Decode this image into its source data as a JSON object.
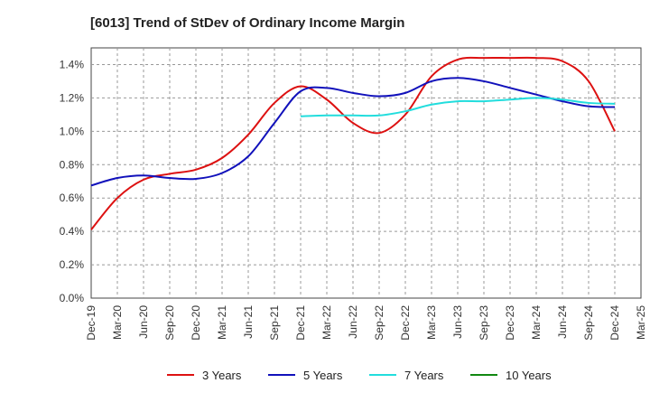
{
  "chart_data": {
    "type": "line",
    "title": "[6013]  Trend of StDev of Ordinary Income Margin",
    "xlabel": "",
    "ylabel": "",
    "x_start": "Dec-19",
    "x_end": "Mar-25",
    "x_ticks": [
      "Dec-19",
      "Mar-20",
      "Jun-20",
      "Sep-20",
      "Dec-20",
      "Mar-21",
      "Jun-21",
      "Sep-21",
      "Dec-21",
      "Mar-22",
      "Jun-22",
      "Sep-22",
      "Dec-22",
      "Mar-23",
      "Jun-23",
      "Sep-23",
      "Dec-23",
      "Mar-24",
      "Jun-24",
      "Sep-24",
      "Dec-24",
      "Mar-25"
    ],
    "y_ticks": [
      "0.0%",
      "0.2%",
      "0.4%",
      "0.6%",
      "0.8%",
      "1.0%",
      "1.2%",
      "1.4%"
    ],
    "ylim": [
      0,
      1.5
    ],
    "grid": true,
    "legend_position": "bottom",
    "series": [
      {
        "name": "3 Years",
        "color": "#dd1111",
        "points": [
          [
            "Dec-19",
            0.41
          ],
          [
            "Mar-20",
            0.6
          ],
          [
            "Jun-20",
            0.71
          ],
          [
            "Sep-20",
            0.745
          ],
          [
            "Dec-20",
            0.77
          ],
          [
            "Mar-21",
            0.84
          ],
          [
            "Jun-21",
            0.98
          ],
          [
            "Sep-21",
            1.17
          ],
          [
            "Dec-21",
            1.27
          ],
          [
            "Mar-22",
            1.19
          ],
          [
            "Jun-22",
            1.05
          ],
          [
            "Sep-22",
            0.99
          ],
          [
            "Dec-22",
            1.1
          ],
          [
            "Mar-23",
            1.33
          ],
          [
            "Jun-23",
            1.43
          ],
          [
            "Sep-23",
            1.44
          ],
          [
            "Dec-23",
            1.44
          ],
          [
            "Mar-24",
            1.44
          ],
          [
            "Jun-24",
            1.42
          ],
          [
            "Sep-24",
            1.3
          ],
          [
            "Dec-24",
            1.0
          ]
        ]
      },
      {
        "name": "5 Years",
        "color": "#1111bb",
        "points": [
          [
            "Dec-19",
            0.675
          ],
          [
            "Mar-20",
            0.72
          ],
          [
            "Jun-20",
            0.735
          ],
          [
            "Sep-20",
            0.72
          ],
          [
            "Dec-20",
            0.715
          ],
          [
            "Mar-21",
            0.75
          ],
          [
            "Jun-21",
            0.85
          ],
          [
            "Sep-21",
            1.05
          ],
          [
            "Dec-21",
            1.24
          ],
          [
            "Mar-22",
            1.26
          ],
          [
            "Jun-22",
            1.23
          ],
          [
            "Sep-22",
            1.21
          ],
          [
            "Dec-22",
            1.23
          ],
          [
            "Mar-23",
            1.3
          ],
          [
            "Jun-23",
            1.32
          ],
          [
            "Sep-23",
            1.3
          ],
          [
            "Dec-23",
            1.26
          ],
          [
            "Mar-24",
            1.22
          ],
          [
            "Jun-24",
            1.18
          ],
          [
            "Sep-24",
            1.15
          ],
          [
            "Dec-24",
            1.145
          ]
        ]
      },
      {
        "name": "7 Years",
        "color": "#22dddd",
        "points": [
          [
            "Dec-21",
            1.09
          ],
          [
            "Mar-22",
            1.095
          ],
          [
            "Jun-22",
            1.095
          ],
          [
            "Sep-22",
            1.095
          ],
          [
            "Dec-22",
            1.12
          ],
          [
            "Mar-23",
            1.16
          ],
          [
            "Jun-23",
            1.18
          ],
          [
            "Sep-23",
            1.18
          ],
          [
            "Dec-23",
            1.19
          ],
          [
            "Mar-24",
            1.2
          ],
          [
            "Jun-24",
            1.19
          ],
          [
            "Sep-24",
            1.17
          ],
          [
            "Dec-24",
            1.165
          ]
        ]
      },
      {
        "name": "10 Years",
        "color": "#118811",
        "points": []
      }
    ]
  }
}
